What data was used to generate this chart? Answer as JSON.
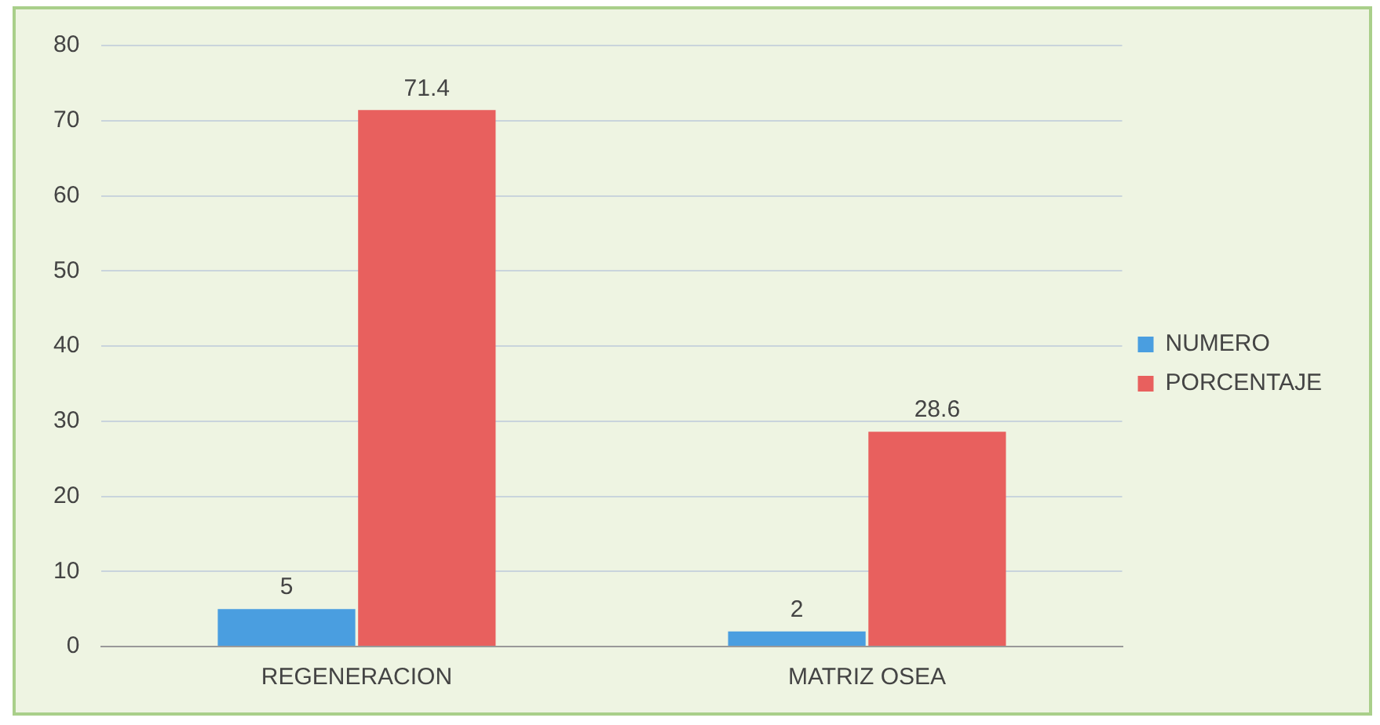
{
  "chart_data": {
    "type": "bar",
    "categories": [
      "REGENERACION",
      "MATRIZ OSEA"
    ],
    "series": [
      {
        "name": "NUMERO",
        "color": "#4a9ee0",
        "values": [
          5,
          2
        ]
      },
      {
        "name": "PORCENTAJE",
        "color": "#e8605e",
        "values": [
          71.4,
          28.6
        ]
      }
    ],
    "ylim": [
      0,
      80
    ],
    "yticks": [
      0,
      10,
      20,
      30,
      40,
      50,
      60,
      70,
      80
    ],
    "grid": "y",
    "legend": "right",
    "data_labels": true
  }
}
